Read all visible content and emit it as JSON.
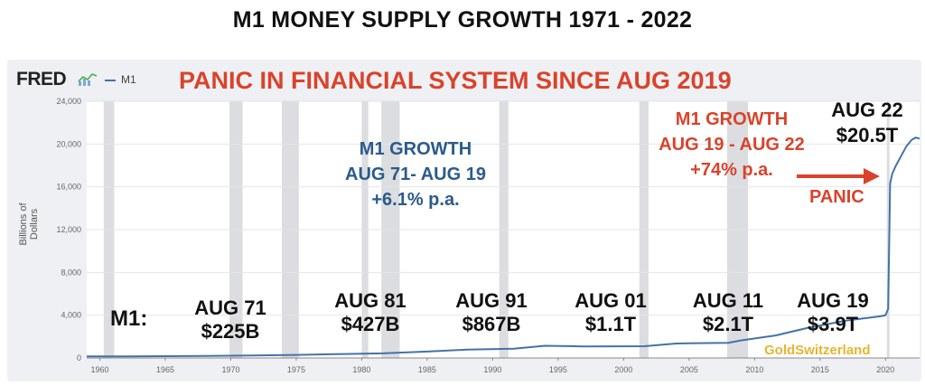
{
  "title": "M1 MONEY SUPPLY GROWTH 1971 - 2022",
  "fred": {
    "logo": "FRED",
    "logo_icon": "chart-sparkline-icon",
    "legend_label": "M1"
  },
  "headline": "PANIC IN FINANCIAL SYSTEM SINCE AUG 2019",
  "watermark": "GoldSwitzerland",
  "annotations": {
    "m1_label": "M1:",
    "aug71_date": "AUG 71",
    "aug71_value": "$225B",
    "aug81_date": "AUG 81",
    "aug81_value": "$427B",
    "aug91_date": "AUG 91",
    "aug91_value": "$867B",
    "aug01_date": "AUG 01",
    "aug01_value": "$1.1T",
    "aug11_date": "AUG 11",
    "aug11_value": "$2.1T",
    "aug19_date": "AUG 19",
    "aug19_value": "$3.9T",
    "aug22_date": "AUG 22",
    "aug22_value": "$20.5T",
    "growth1_line1": "M1 GROWTH",
    "growth1_line2": "AUG 71- AUG 19",
    "growth1_line3": "+6.1% p.a.",
    "growth2_line1": "M1 GROWTH",
    "growth2_line2": "AUG 19 - AUG 22",
    "growth2_line3": "+74% p.a.",
    "panic": "PANIC"
  },
  "colors": {
    "series": "#4472a8",
    "red": "#d9432b",
    "blue": "#2b5a8c",
    "recession": "#dcdde0",
    "plot_bg": "#ffffff",
    "frame_bg": "#eef0f3"
  },
  "chart_data": {
    "type": "line",
    "title": "M1 MONEY SUPPLY GROWTH 1971 - 2022",
    "ylabel": "Billions of Dollars",
    "xlabel": "",
    "xlim": [
      1959,
      2022.6
    ],
    "ylim": [
      0,
      24000
    ],
    "x_ticks": [
      1960,
      1965,
      1970,
      1975,
      1980,
      1985,
      1990,
      1995,
      2000,
      2005,
      2010,
      2015,
      2020
    ],
    "y_ticks": [
      0,
      4000,
      8000,
      12000,
      16000,
      20000,
      24000
    ],
    "y_tick_labels": [
      "0",
      "4,000",
      "8,000",
      "12,000",
      "16,000",
      "20,000",
      "24,000"
    ],
    "grid": "horizontal",
    "legend": "top-left",
    "recessions": [
      [
        1960.3,
        1961.1
      ],
      [
        1969.9,
        1970.9
      ],
      [
        1973.9,
        1975.2
      ],
      [
        1980.0,
        1980.5
      ],
      [
        1981.5,
        1982.9
      ],
      [
        1990.5,
        1991.2
      ],
      [
        2001.2,
        2001.9
      ],
      [
        2007.9,
        2009.5
      ],
      [
        2020.1,
        2020.3
      ]
    ],
    "series": [
      {
        "name": "M1",
        "x": [
          1959.0,
          1962,
          1965,
          1968,
          1971.6,
          1975,
          1978,
          1981.6,
          1985,
          1988,
          1991.6,
          1994,
          1997,
          2001.6,
          2004,
          2008,
          2009,
          2011.6,
          2014,
          2017,
          2019.6,
          2020.0,
          2020.2,
          2020.35,
          2020.5,
          2020.8,
          2021.2,
          2021.6,
          2022.0,
          2022.3,
          2022.6
        ],
        "y": [
          140,
          147,
          165,
          190,
          225,
          285,
          355,
          427,
          600,
          780,
          867,
          1145,
          1080,
          1100,
          1350,
          1420,
          1650,
          2100,
          2800,
          3500,
          3900,
          4000,
          4600,
          16300,
          17200,
          18000,
          18900,
          19800,
          20400,
          20600,
          20500
        ]
      }
    ]
  }
}
